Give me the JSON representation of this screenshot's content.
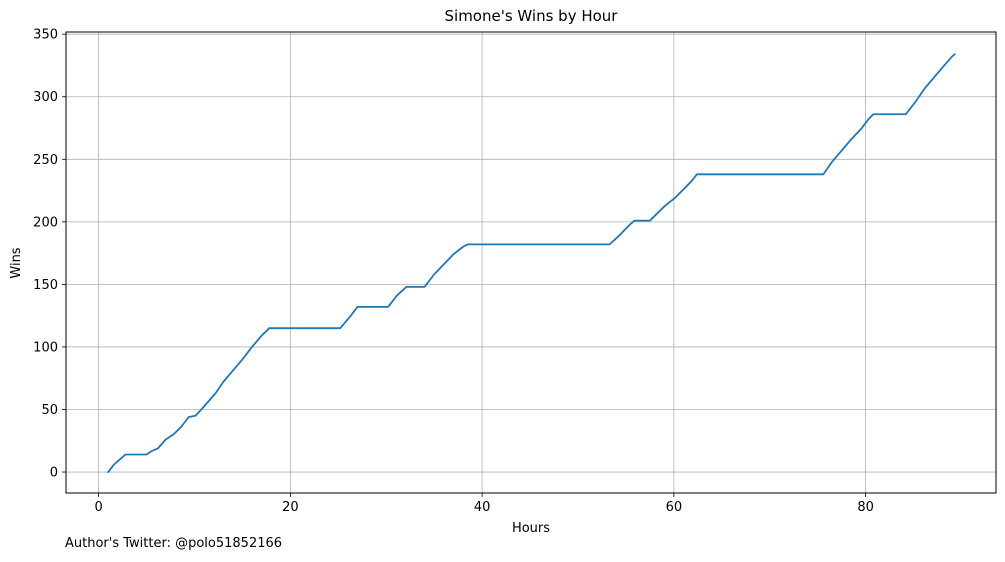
{
  "chart_data": {
    "type": "line",
    "title": "Simone's Wins by Hour",
    "xlabel": "Hours",
    "ylabel": "Wins",
    "xlim": [
      -3.4,
      93.6
    ],
    "ylim": [
      -16.75,
      351.75
    ],
    "xticks": [
      0,
      20,
      40,
      60,
      80
    ],
    "yticks": [
      0,
      50,
      100,
      150,
      200,
      250,
      300,
      350
    ],
    "grid": true,
    "line_color": "#1f77b4",
    "series": [
      {
        "x": [
          1,
          1.6,
          2.2,
          2.8,
          5.0,
          5.6,
          6.2,
          7.0,
          7.8,
          8.6,
          9.4,
          10.1,
          10.6,
          11.4,
          12.2,
          13.0,
          14.0,
          15.0,
          16.0,
          17.0,
          17.8,
          25.2,
          26.2,
          27.0,
          30.2,
          31.1,
          32.1,
          34.0,
          35.0,
          36.0,
          37.0,
          38.0,
          38.5,
          53.3,
          54.3,
          55.3,
          55.9,
          57.5,
          58.3,
          59.1,
          60.1,
          61.0,
          61.9,
          62.4,
          75.6,
          76.5,
          77.5,
          78.5,
          79.5,
          80.3,
          80.8,
          84.2,
          85.2,
          86.2,
          87.2,
          88.2,
          89.0,
          89.3
        ],
        "y": [
          0,
          6,
          10,
          14,
          14,
          17,
          19,
          26,
          30,
          36,
          44,
          45,
          49,
          56,
          63,
          72,
          81,
          90,
          100,
          109,
          115,
          115,
          124,
          132,
          132,
          141,
          148,
          148,
          158,
          166,
          174,
          180,
          182,
          182,
          189,
          197,
          201,
          201,
          207,
          213,
          219,
          226,
          233,
          238,
          238,
          248,
          257,
          266,
          274,
          282,
          286,
          286,
          296,
          307,
          316,
          325,
          332,
          334
        ]
      }
    ]
  },
  "footnote": "Author's Twitter: @polo51852166"
}
